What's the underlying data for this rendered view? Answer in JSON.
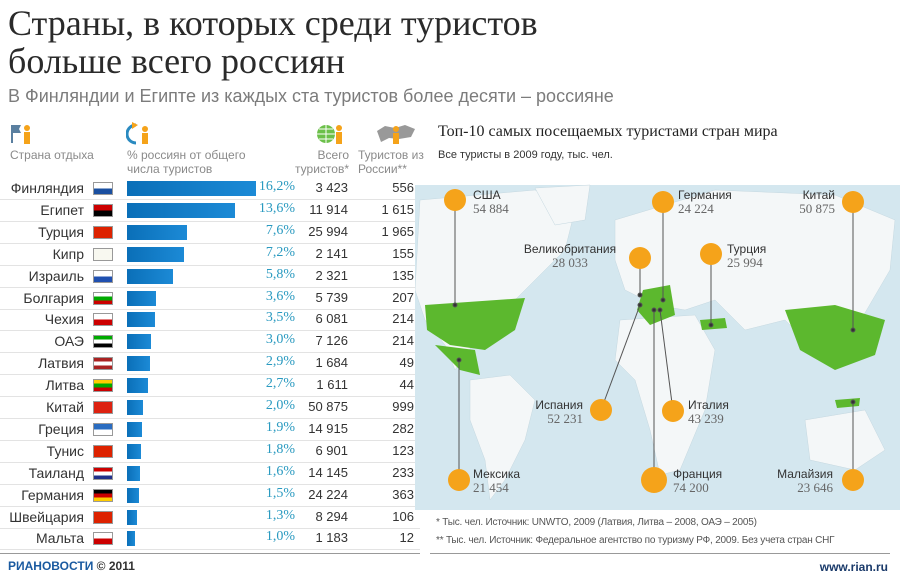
{
  "title_line1": "Страны, в которых среди туристов",
  "title_line2": "больше всего россиян",
  "subtitle": "В Финляндии и Египте из каждых ста туристов более десяти – россияне",
  "table": {
    "headers": {
      "country": "Страна отдыха",
      "pct": "% россиян от общего числа туристов",
      "total": "Всего туристов*",
      "russia": "Туристов из России**"
    },
    "icons": [
      "flag-person-icon",
      "arrow-person-icon",
      "globe-person-icon",
      "russia-map-person-icon"
    ]
  },
  "chart_data": [
    {
      "type": "bar",
      "orientation": "horizontal",
      "ylabel": "% россиян от общего числа туристов",
      "categories": [
        "Финляндия",
        "Египет",
        "Турция",
        "Кипр",
        "Израиль",
        "Болгария",
        "Чехия",
        "ОАЭ",
        "Латвия",
        "Литва",
        "Китай",
        "Греция",
        "Тунис",
        "Таиланд",
        "Германия",
        "Швейцария",
        "Мальта"
      ],
      "values": [
        16.2,
        13.6,
        7.6,
        7.2,
        5.8,
        3.6,
        3.5,
        3.0,
        2.9,
        2.7,
        2.0,
        1.9,
        1.8,
        1.6,
        1.5,
        1.3,
        1.0
      ],
      "value_labels": [
        "16,2%",
        "13,6%",
        "7,6%",
        "7,2%",
        "5,8%",
        "3,6%",
        "3,5%",
        "3,0%",
        "2,9%",
        "2,7%",
        "2,0%",
        "1,9%",
        "1,8%",
        "1,6%",
        "1,5%",
        "1,3%",
        "1,0%"
      ],
      "total_tourists": [
        "3 423",
        "11 914",
        "25 994",
        "2 141",
        "2 321",
        "5 739",
        "6 081",
        "7 126",
        "1 684",
        "1 611",
        "50 875",
        "14 915",
        "6 901",
        "14 145",
        "24 224",
        "8 294",
        "1 183"
      ],
      "tourists_from_russia": [
        "556",
        "1 615",
        "1 965",
        "155",
        "135",
        "207",
        "214",
        "214",
        "49",
        "44",
        "999",
        "282",
        "123",
        "233",
        "363",
        "106",
        "12"
      ],
      "bar_color": "#0a6fb8"
    },
    {
      "type": "map",
      "title": "Топ-10 самых посещаемых туристами стран мира",
      "subtitle": "Все туристы в 2009 году, тыс. чел.",
      "points": [
        {
          "name": "США",
          "value": "54 884"
        },
        {
          "name": "Германия",
          "value": "24 224"
        },
        {
          "name": "Китай",
          "value": "50 875"
        },
        {
          "name": "Великобритания",
          "value": "28 033"
        },
        {
          "name": "Турция",
          "value": "25 994"
        },
        {
          "name": "Испания",
          "value": "52 231"
        },
        {
          "name": "Италия",
          "value": "43 239"
        },
        {
          "name": "Мексика",
          "value": "21 454"
        },
        {
          "name": "Франция",
          "value": "74 200"
        },
        {
          "name": "Малайзия",
          "value": "23 646"
        }
      ],
      "marker_color": "#f5a31a",
      "highlight_color": "#5cb82e",
      "ocean_color": "#d4e7ef"
    }
  ],
  "footnotes": [
    "* Тыс. чел. Источник: UNWTO, 2009 (Латвия, Литва – 2008, ОАЭ – 2005)",
    "** Тыс. чел. Источник: Федеральное агентство по туризму РФ, 2009. Без учета стран СНГ"
  ],
  "footer": {
    "logo": "РИАНОВОСТИ",
    "copyright": "© 2011",
    "url": "www.rian.ru"
  }
}
